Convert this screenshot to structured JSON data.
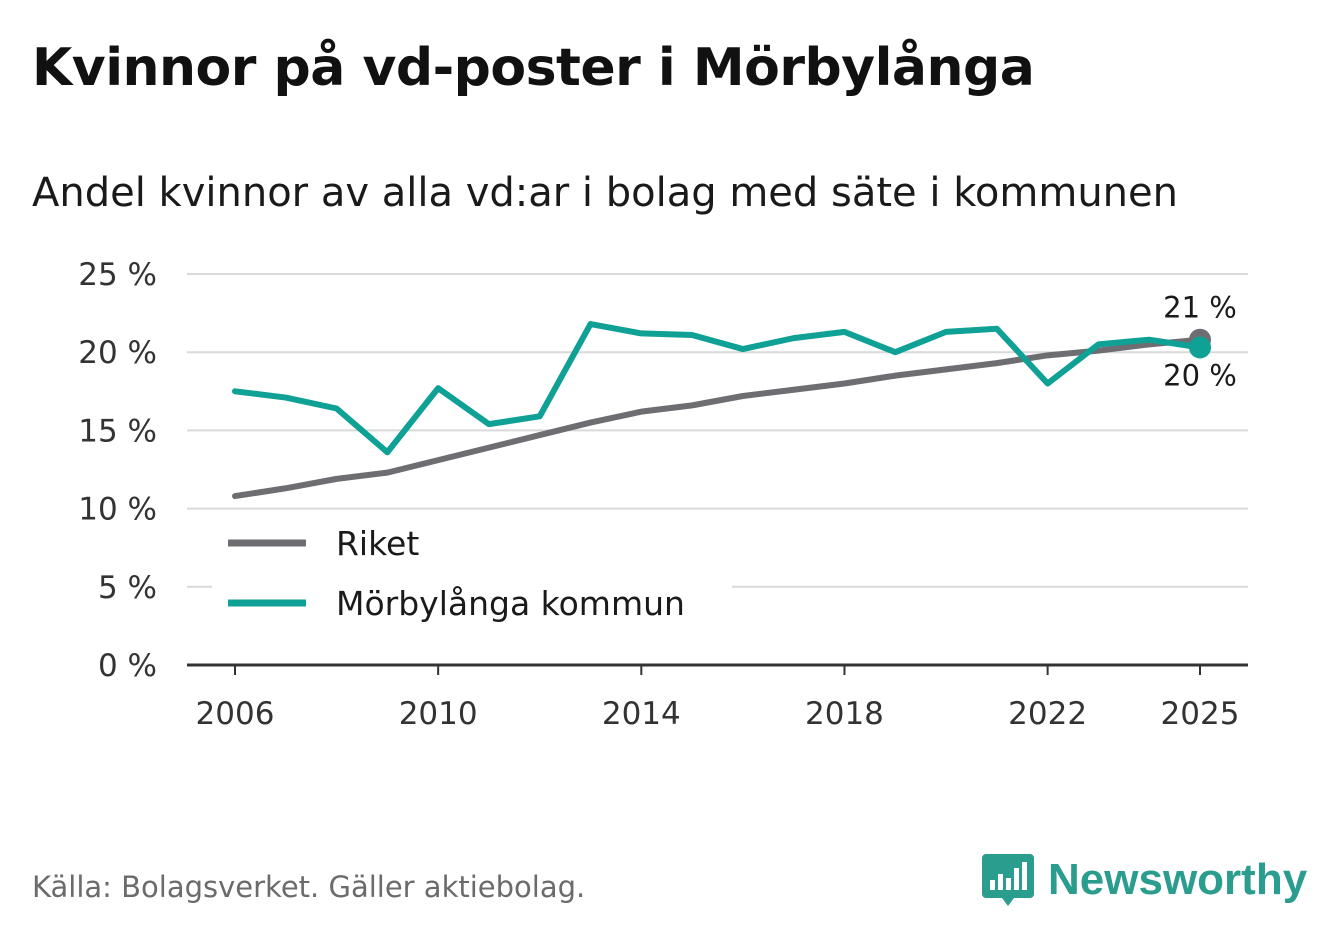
{
  "header": {
    "title": "Kvinnor på vd-poster i Mörbylånga",
    "subtitle": "Andel kvinnor av alla vd:ar i bolag med säte i kommunen"
  },
  "chart_data": {
    "type": "line",
    "title": "Kvinnor på vd-poster i Mörbylånga",
    "subtitle": "Andel kvinnor av alla vd:ar i bolag med säte i kommunen",
    "xlabel": "",
    "ylabel": "",
    "x": [
      2006,
      2007,
      2008,
      2009,
      2010,
      2011,
      2012,
      2013,
      2014,
      2015,
      2016,
      2017,
      2018,
      2019,
      2020,
      2021,
      2022,
      2023,
      2024,
      2025
    ],
    "x_ticks": [
      "2006",
      "2010",
      "2014",
      "2018",
      "2022",
      "2025"
    ],
    "ylim": [
      0,
      25
    ],
    "y_ticks": [
      "0 %",
      "5 %",
      "10 %",
      "15 %",
      "20 %",
      "25 %"
    ],
    "grid": true,
    "legend_position": "bottom-left",
    "series": [
      {
        "name": "Riket",
        "color": "#6e6d72",
        "values": [
          10.8,
          11.3,
          11.9,
          12.3,
          13.1,
          13.9,
          14.7,
          15.5,
          16.2,
          16.6,
          17.2,
          17.6,
          18.0,
          18.5,
          18.9,
          19.3,
          19.8,
          20.1,
          20.5,
          20.8
        ],
        "end_label": "21 %"
      },
      {
        "name": "Mörbylånga kommun",
        "color": "#0fa096",
        "values": [
          17.5,
          17.1,
          16.4,
          13.6,
          17.7,
          15.4,
          15.9,
          21.8,
          21.2,
          21.1,
          20.2,
          20.9,
          21.3,
          20.0,
          21.3,
          21.5,
          18.0,
          20.5,
          20.8,
          20.3
        ],
        "end_label": "20 %"
      }
    ]
  },
  "footer": {
    "source": "Källa: Bolagsverket. Gäller aktiebolag.",
    "brand": "Newsworthy"
  },
  "colors": {
    "brand": "#2a9d8f",
    "grid": "#d9d9d9",
    "axis": "#333333"
  }
}
